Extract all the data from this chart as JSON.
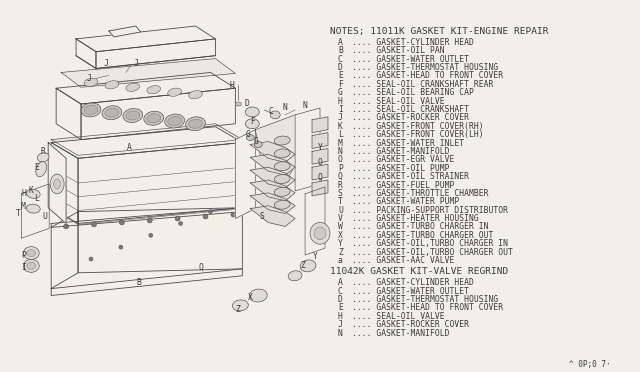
{
  "bg_color": "#f2efe9",
  "title_notes": "NOTES; 11011K GASKET KIT-ENGINE REPAIR",
  "title_kit2": "11042K GASKET KIT-VALVE REGRIND",
  "footer": "^ 0P;0 7·",
  "kit1_items": [
    [
      "A",
      ".... GASKET-CYLINDER HEAD"
    ],
    [
      "B",
      ".... GASKET-OIL PAN"
    ],
    [
      "C",
      ".... GASKET-WATER OUTLET"
    ],
    [
      "D",
      ".... GASKET-THERMOSTAT HOUSING"
    ],
    [
      "E",
      ".... GASKET-HEAD TO FRONT COVER"
    ],
    [
      "F",
      ".... SEAL-OIL CRANKSHAFT REAR"
    ],
    [
      "G",
      ".... SEAL-OIL BEARING CAP"
    ],
    [
      "H",
      ".... SEAL-OIL VALVE"
    ],
    [
      "I",
      ".... SEAL-OIL CRANKSHAFT"
    ],
    [
      "J",
      ".... GASKET-ROCKER COVER"
    ],
    [
      "K",
      ".... GASKET-FRONT COVER(RH)"
    ],
    [
      "L",
      ".... GASKET-FRONT COVER(LH)"
    ],
    [
      "M",
      ".... GASKET-WATER INLET"
    ],
    [
      "N",
      ".... GASKET-MANIFOLD"
    ],
    [
      "O",
      ".... GASKET-EGR VALVE"
    ],
    [
      "P",
      ".... GASKET-OIL PUMP"
    ],
    [
      "Q",
      ".... GASKET-OIL STRAINER"
    ],
    [
      "R",
      ".... GASKET-FUEL PUMP"
    ],
    [
      "S",
      ".... GASKET-THROTTLE CHAMBER"
    ],
    [
      "T",
      ".... GASKET-WATER PUMP"
    ],
    [
      "U",
      ".... PACKING-SUPPORT DISTRIBUTOR"
    ],
    [
      "V",
      ".... GASKET-HEATER HOUSING"
    ],
    [
      "W",
      ".... GASKET-TURBO CHARGER IN"
    ],
    [
      "X",
      ".... GASKET-TURBO CHARGER OUT"
    ],
    [
      "Y",
      ".... GASKET-OIL,TURBO CHARGER IN"
    ],
    [
      "Z",
      ".... GASKET-OIL,TURBO CHARGER OUT"
    ],
    [
      "a",
      ".... GASKET-AAC VALVE"
    ]
  ],
  "kit2_items": [
    [
      "A",
      ".... GASKET-CYLINDER HEAD"
    ],
    [
      "C",
      ".... GASKET-WATER OUTLET"
    ],
    [
      "D",
      ".... GASKET-THERMOSTAT HOUSING"
    ],
    [
      "E",
      ".... GASKET-HEAD TO FRONT COVER"
    ],
    [
      "H",
      ".... SEAL-OIL VALVE"
    ],
    [
      "J",
      ".... GASKET-ROCKER COVER"
    ],
    [
      "N",
      ".... GASKET-MANIFOLD"
    ]
  ],
  "font_size_title": 6.8,
  "font_size_item": 5.8,
  "font_size_footer": 5.5,
  "text_color": "#3a3a3a",
  "line_color": "#4a4a4a",
  "line_color_light": "#7a7a7a"
}
